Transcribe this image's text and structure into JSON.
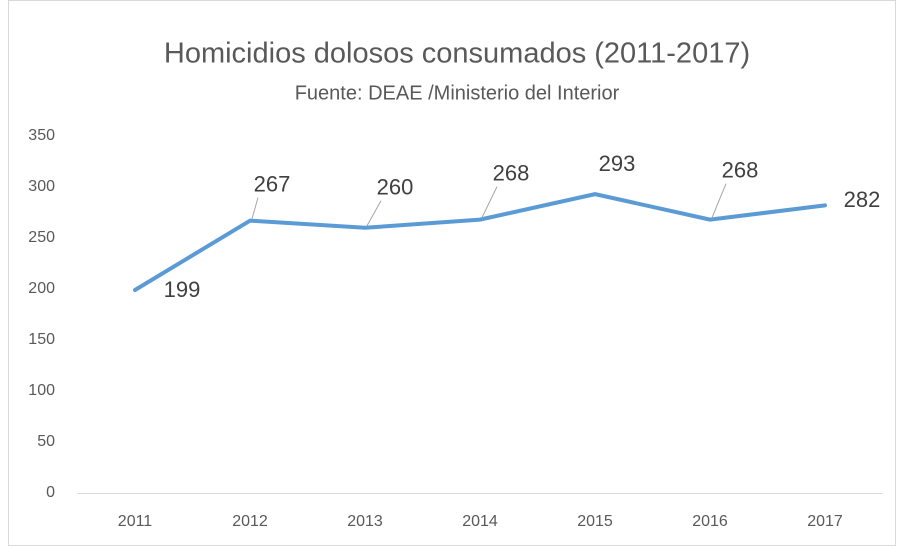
{
  "chart_data": {
    "type": "line",
    "title": "Homicidios dolosos consumados (2011-2017)",
    "subtitle": "Fuente: DEAE /Ministerio del Interior",
    "categories": [
      "2011",
      "2012",
      "2013",
      "2014",
      "2015",
      "2016",
      "2017"
    ],
    "series": [
      {
        "name": "Homicidios dolosos consumados",
        "color": "#5b9bd5",
        "values": [
          199,
          267,
          260,
          268,
          293,
          268,
          282
        ]
      }
    ],
    "ylim": [
      0,
      350
    ],
    "yticks": [
      0,
      50,
      100,
      150,
      200,
      250,
      300,
      350
    ],
    "grid": false
  }
}
